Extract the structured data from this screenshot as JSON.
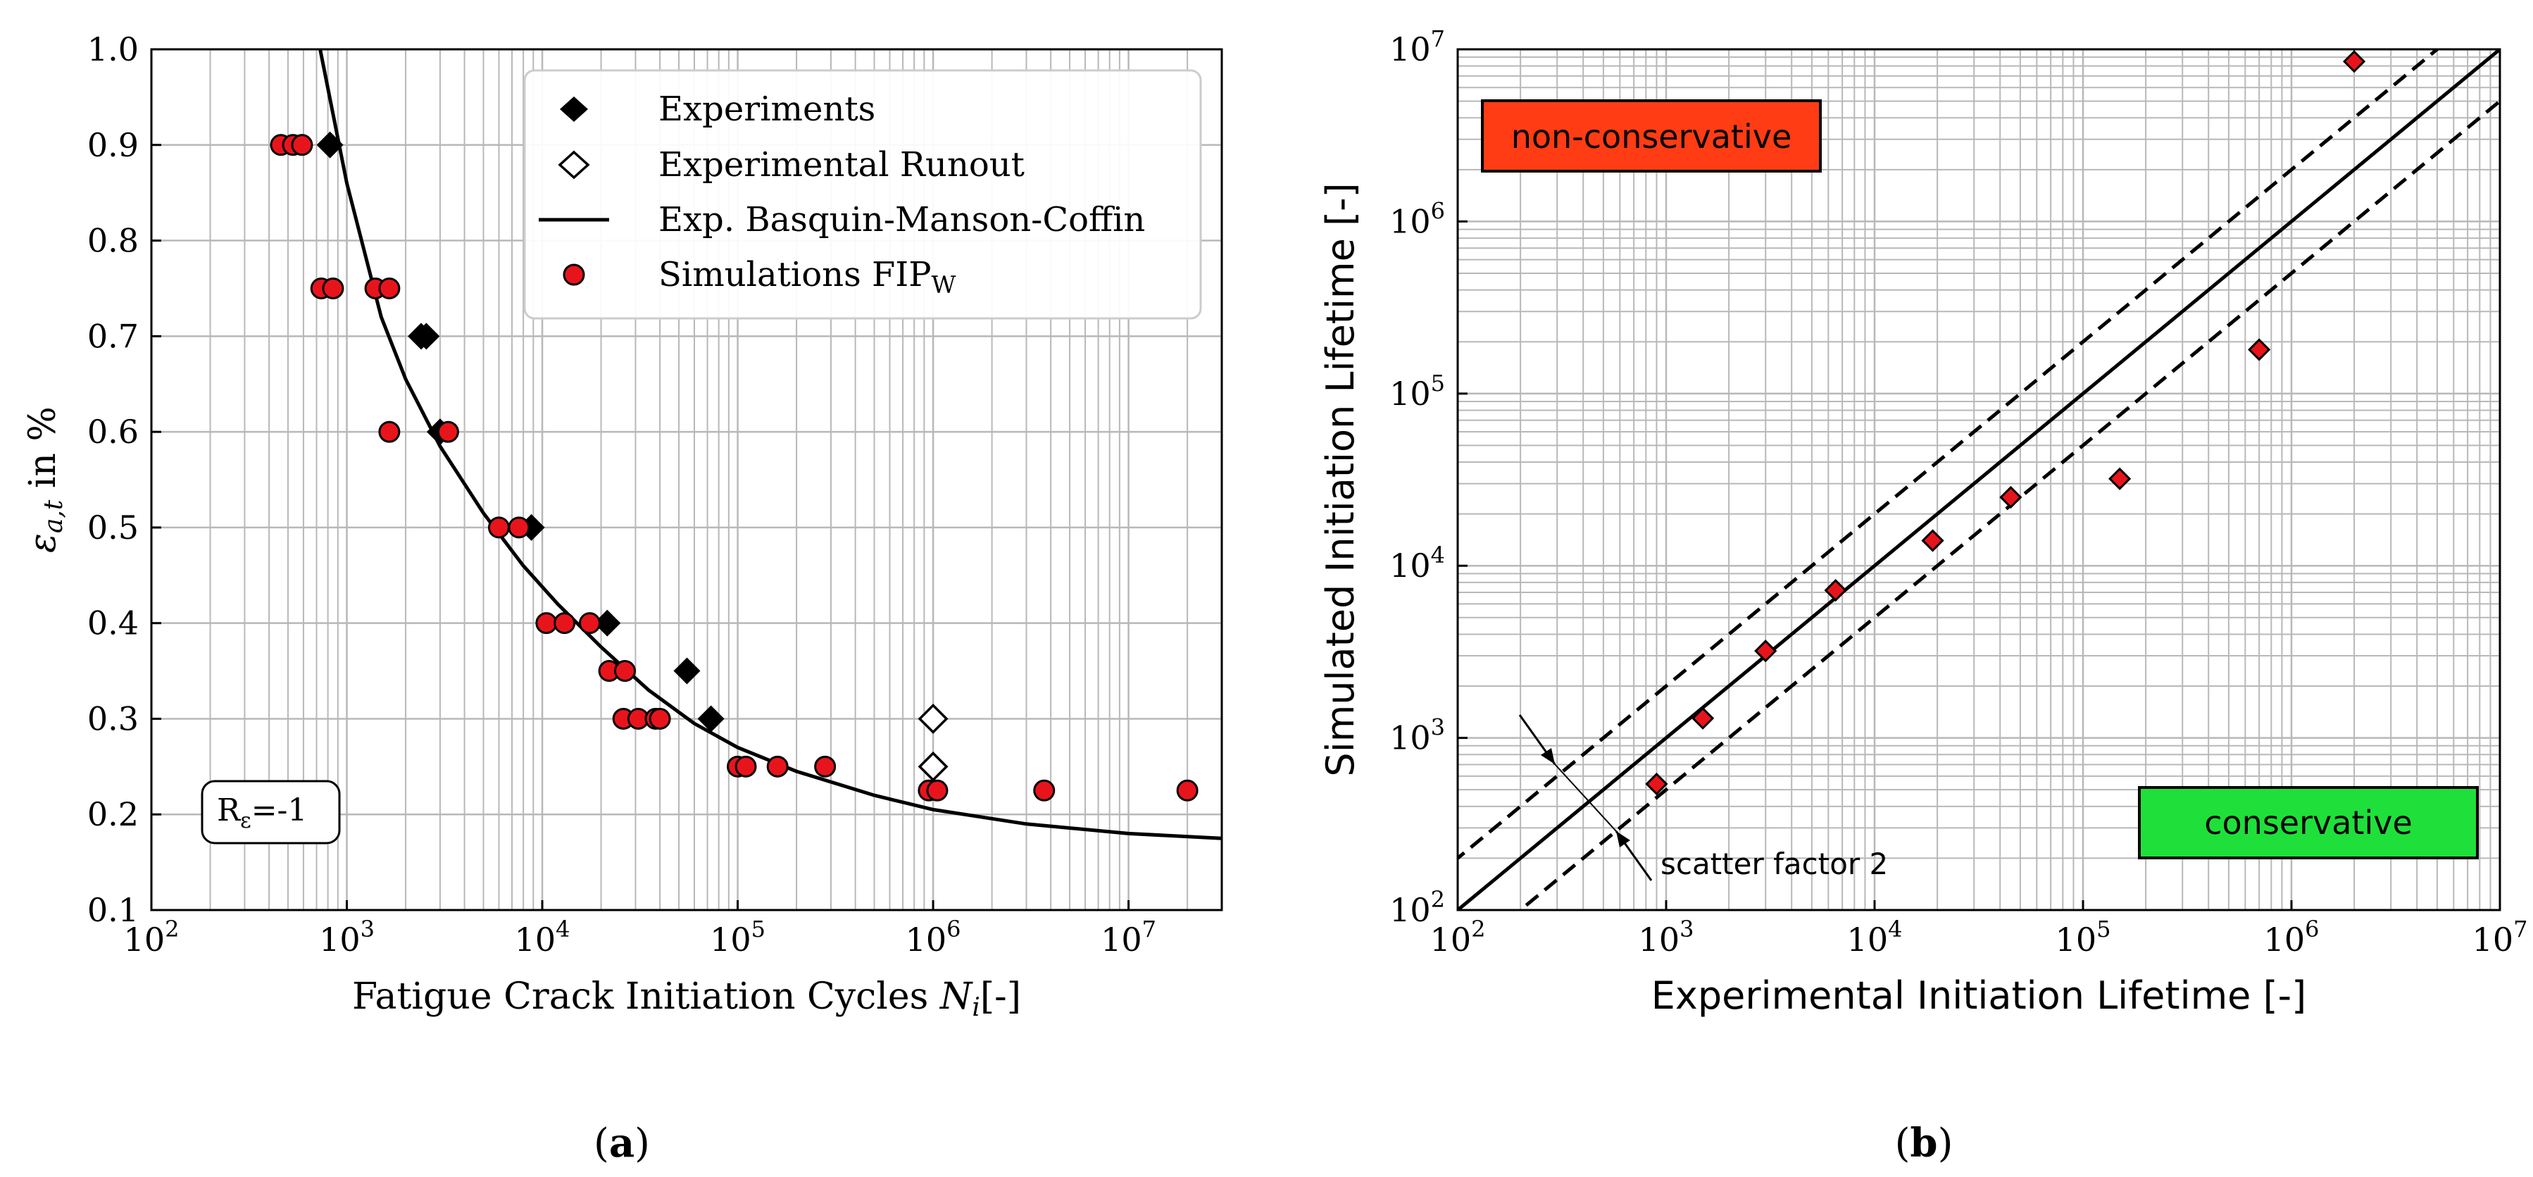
{
  "chart_data": [
    {
      "id": "a",
      "type": "scatter",
      "caption": "(a)",
      "caption_letter": "a",
      "xlabel_text": "Fatigue Crack Initiation Cycles ",
      "xlabel_symbol": "N",
      "xlabel_sub": "i",
      "xlabel_unit": "[-]",
      "ylabel_symbol": "ε",
      "ylabel_sub": "a,t",
      "ylabel_text": " in %",
      "xscale": "log",
      "xlim": [
        100,
        30000000
      ],
      "ylim": [
        0.1,
        1.0
      ],
      "grid": true,
      "xticks": [
        {
          "base": "10",
          "exp": "2",
          "v": 100
        },
        {
          "base": "10",
          "exp": "3",
          "v": 1000
        },
        {
          "base": "10",
          "exp": "4",
          "v": 10000
        },
        {
          "base": "10",
          "exp": "5",
          "v": 100000
        },
        {
          "base": "10",
          "exp": "6",
          "v": 1000000
        },
        {
          "base": "10",
          "exp": "7",
          "v": 10000000
        }
      ],
      "yticks": [
        {
          "label": "0.1",
          "v": 0.1
        },
        {
          "label": "0.2",
          "v": 0.2
        },
        {
          "label": "0.3",
          "v": 0.3
        },
        {
          "label": "0.4",
          "v": 0.4
        },
        {
          "label": "0.5",
          "v": 0.5
        },
        {
          "label": "0.6",
          "v": 0.6
        },
        {
          "label": "0.7",
          "v": 0.7
        },
        {
          "label": "0.8",
          "v": 0.8
        },
        {
          "label": "0.9",
          "v": 0.9
        },
        {
          "label": "1.0",
          "v": 1.0
        }
      ],
      "legend_position": "top-right",
      "legend": [
        {
          "label": "Experiments",
          "marker": "diamond-filled"
        },
        {
          "label": "Experimental Runout",
          "marker": "diamond-open"
        },
        {
          "label": "Exp. Basquin-Manson-Coffin",
          "marker": "line"
        },
        {
          "label": "Simulations FIP",
          "sub": "W",
          "marker": "circle-red"
        }
      ],
      "annotation": {
        "prefix": "R",
        "sub": "ε",
        "suffix": "=-1"
      },
      "curve": {
        "name": "Exp. Basquin-Manson-Coffin",
        "x": [
          730,
          1000,
          1500,
          2000,
          3000,
          5000,
          8000,
          12000,
          20000,
          35000,
          60000,
          100000,
          200000,
          500000,
          1000000,
          3000000,
          10000000,
          30000000
        ],
        "y": [
          1.0,
          0.86,
          0.72,
          0.655,
          0.585,
          0.515,
          0.46,
          0.42,
          0.375,
          0.33,
          0.295,
          0.27,
          0.245,
          0.22,
          0.205,
          0.19,
          0.18,
          0.175
        ]
      },
      "series": [
        {
          "name": "Experiments",
          "marker": "diamond-filled",
          "points": [
            [
              820,
              0.9
            ],
            [
              2400,
              0.7
            ],
            [
              2550,
              0.7
            ],
            [
              3000,
              0.6
            ],
            [
              8800,
              0.5
            ],
            [
              21500,
              0.4
            ],
            [
              55000,
              0.35
            ],
            [
              73000,
              0.3
            ]
          ]
        },
        {
          "name": "Experimental Runout",
          "marker": "diamond-open",
          "points": [
            [
              1000000,
              0.3
            ],
            [
              1000000,
              0.25
            ]
          ]
        },
        {
          "name": "Simulations FIP_W",
          "marker": "circle-red",
          "points": [
            [
              460,
              0.9
            ],
            [
              530,
              0.9
            ],
            [
              590,
              0.9
            ],
            [
              740,
              0.75
            ],
            [
              850,
              0.75
            ],
            [
              1400,
              0.75
            ],
            [
              1650,
              0.75
            ],
            [
              1650,
              0.6
            ],
            [
              3300,
              0.6
            ],
            [
              6000,
              0.5
            ],
            [
              7600,
              0.5
            ],
            [
              10500,
              0.4
            ],
            [
              13000,
              0.4
            ],
            [
              17500,
              0.4
            ],
            [
              22000,
              0.35
            ],
            [
              26500,
              0.35
            ],
            [
              26000,
              0.3
            ],
            [
              31000,
              0.3
            ],
            [
              38000,
              0.3
            ],
            [
              40000,
              0.3
            ],
            [
              100000,
              0.25
            ],
            [
              110000,
              0.25
            ],
            [
              160000,
              0.25
            ],
            [
              280000,
              0.25
            ],
            [
              950000,
              0.225
            ],
            [
              1050000,
              0.225
            ],
            [
              3700000,
              0.225
            ],
            [
              20000000,
              0.225
            ]
          ]
        }
      ]
    },
    {
      "id": "b",
      "type": "scatter",
      "caption": "(b)",
      "caption_letter": "b",
      "xlabel": "Experimental Initiation Lifetime [-]",
      "ylabel": "Simulated Initiation Lifetime [-]",
      "xscale": "log",
      "yscale": "log",
      "xlim": [
        100,
        10000000
      ],
      "ylim": [
        100,
        10000000
      ],
      "grid": true,
      "xticks": [
        {
          "base": "10",
          "exp": "2",
          "v": 100
        },
        {
          "base": "10",
          "exp": "3",
          "v": 1000
        },
        {
          "base": "10",
          "exp": "4",
          "v": 10000
        },
        {
          "base": "10",
          "exp": "5",
          "v": 100000
        },
        {
          "base": "10",
          "exp": "6",
          "v": 1000000
        },
        {
          "base": "10",
          "exp": "7",
          "v": 10000000
        }
      ],
      "yticks": [
        {
          "base": "10",
          "exp": "2",
          "v": 100
        },
        {
          "base": "10",
          "exp": "3",
          "v": 1000
        },
        {
          "base": "10",
          "exp": "4",
          "v": 10000
        },
        {
          "base": "10",
          "exp": "5",
          "v": 100000
        },
        {
          "base": "10",
          "exp": "6",
          "v": 1000000
        },
        {
          "base": "10",
          "exp": "7",
          "v": 10000000
        }
      ],
      "lines": [
        {
          "name": "1:1",
          "factor": 1,
          "style": "solid"
        },
        {
          "name": "upper scatter",
          "factor": 2,
          "style": "dashed"
        },
        {
          "name": "lower scatter",
          "factor": 0.5,
          "style": "dashed"
        }
      ],
      "series": [
        {
          "name": "Simulated vs Experimental",
          "marker": "diamond-red",
          "points": [
            [
              900,
              540
            ],
            [
              1500,
              1300
            ],
            [
              3000,
              3200
            ],
            [
              6500,
              7200
            ],
            [
              19000,
              14000
            ],
            [
              45000,
              25000
            ],
            [
              150000,
              32000
            ],
            [
              700000,
              180000
            ],
            [
              2000000,
              8500000
            ]
          ]
        }
      ],
      "regions": [
        {
          "label": "non-conservative",
          "color": "#ff3c14"
        },
        {
          "label": "conservative",
          "color": "#1fe03a"
        }
      ],
      "annotation": {
        "label": "scatter factor 2"
      }
    }
  ],
  "colors": {
    "marker_red": "#e8141c",
    "grid": "#b8b8b8",
    "non_conservative": "#ff3c14",
    "conservative": "#1fe03a"
  }
}
